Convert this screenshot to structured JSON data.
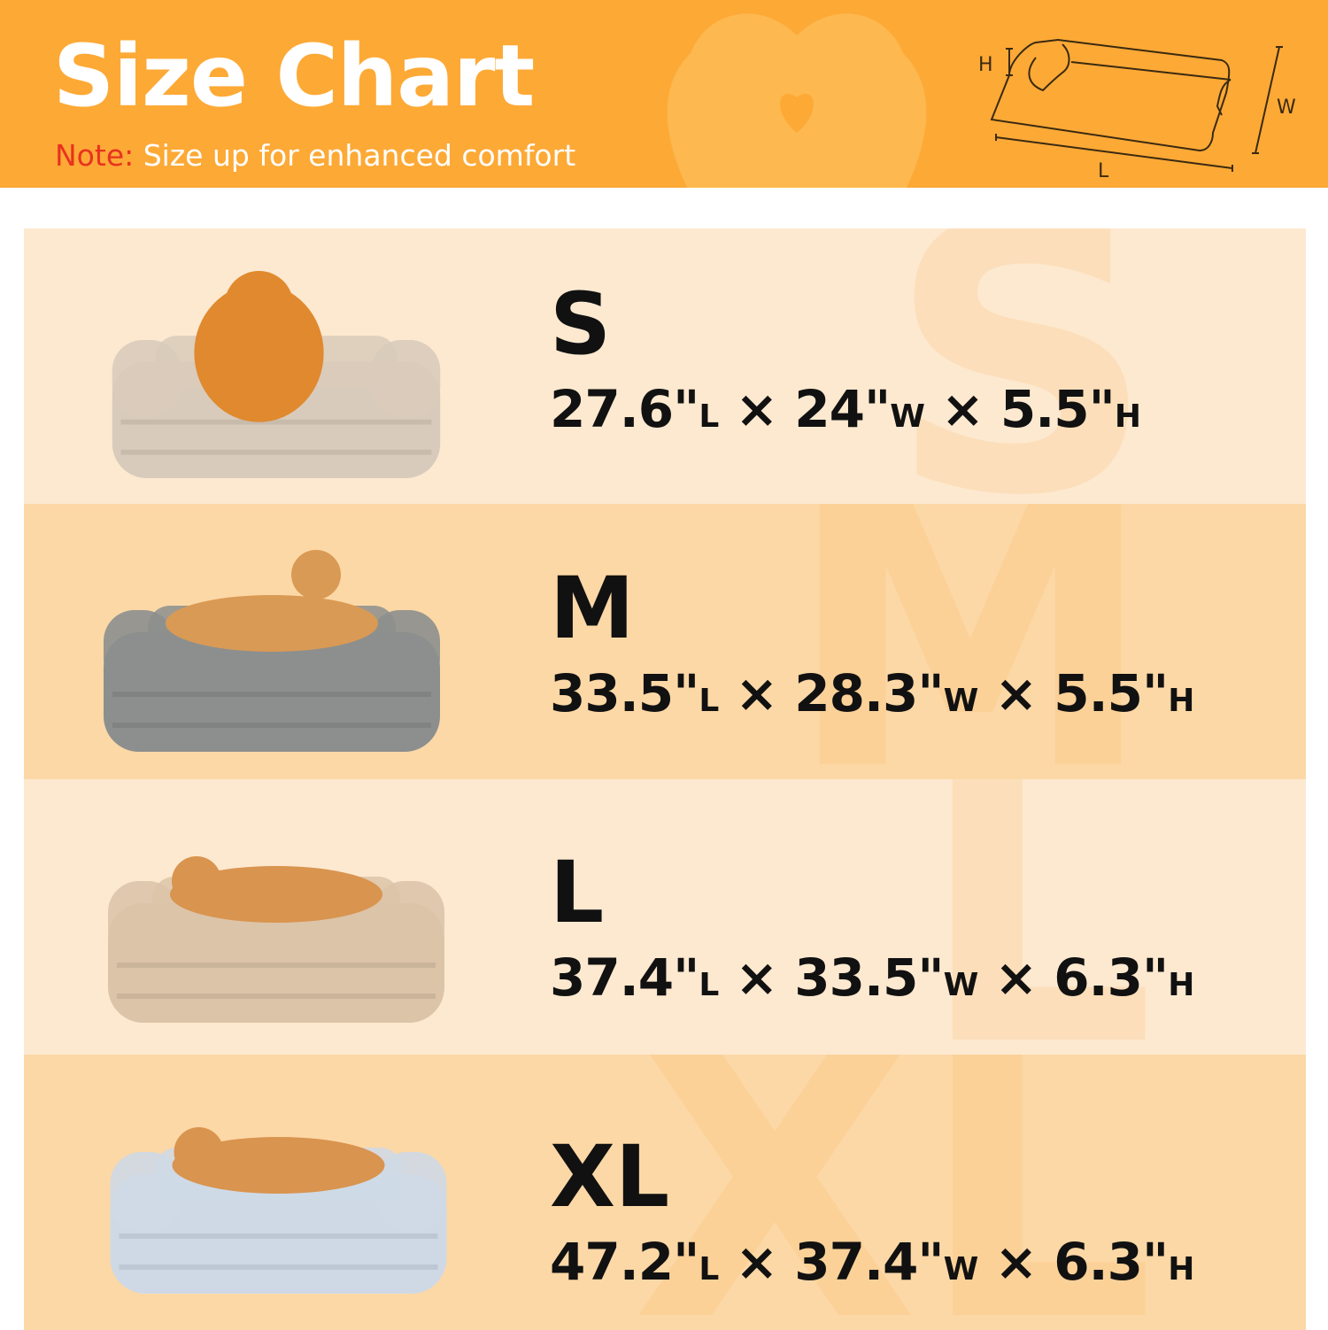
{
  "header": {
    "title": "Size Chart",
    "note_label": "Note:",
    "note_text": " Size up for enhanced comfort",
    "diagram_labels": {
      "h": "H",
      "w": "W",
      "l": "L"
    }
  },
  "colors": {
    "header": "#fda936",
    "note": "#e8321f",
    "row_light": "#fde9d0",
    "row_dark": "#fcd8a6"
  },
  "sizes": [
    {
      "size": "S",
      "length": "27.6\"",
      "width": "24\"",
      "height": "5.5\"",
      "bed_color": "#d9cbbb",
      "dog_color": "#e0892e"
    },
    {
      "size": "M",
      "length": "33.5\"",
      "width": "28.3\"",
      "height": "5.5\"",
      "bed_color": "#8c8f8e",
      "dog_color": "#d99a55"
    },
    {
      "size": "L",
      "length": "37.4\"",
      "width": "33.5\"",
      "height": "6.3\"",
      "bed_color": "#dcc4a8",
      "dog_color": "#d9944f"
    },
    {
      "size": "XL",
      "length": "47.2\"",
      "width": "37.4\"",
      "height": "6.3\"",
      "bed_color": "#cfd9e6",
      "dog_color": "#d9944f"
    }
  ],
  "units": {
    "l": "L",
    "w": "W",
    "h": "H",
    "times": " × "
  }
}
